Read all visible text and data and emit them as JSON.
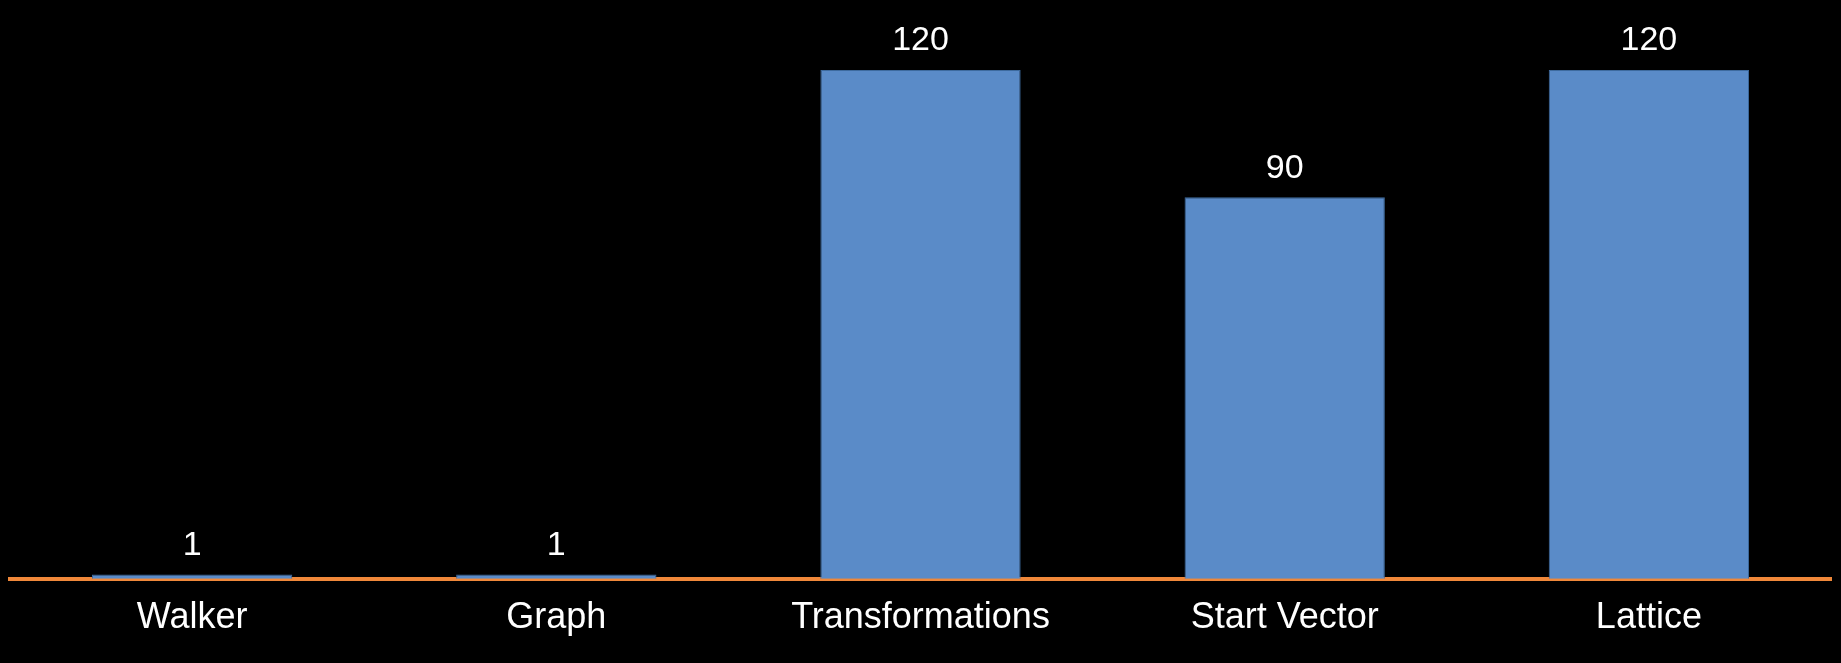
{
  "chart_data": {
    "type": "bar",
    "categories": [
      "Walker",
      "Graph",
      "Transformations",
      "Start Vector",
      "Lattice"
    ],
    "values": [
      1,
      1,
      120,
      90,
      120
    ],
    "color": "#5a8bc8",
    "data_labels": true,
    "grid": false,
    "legend": false
  }
}
